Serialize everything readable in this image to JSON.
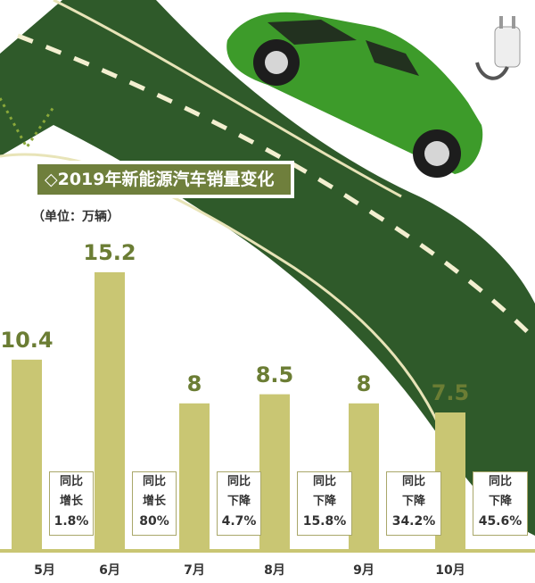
{
  "chart_data": {
    "type": "bar",
    "title": "◇2019年新能源汽车销量变化",
    "unit_label": "（单位：万辆）",
    "categories": [
      "5月",
      "6月",
      "7月",
      "8月",
      "9月",
      "10月"
    ],
    "values": [
      10.4,
      15.2,
      8,
      8.5,
      8,
      7.5
    ],
    "value_labels": [
      "10.4",
      "15.2",
      "8",
      "8.5",
      "8",
      "7.5"
    ],
    "yoy_notes": [
      {
        "line1": "同比",
        "line2": "增长",
        "value": "1.8%"
      },
      {
        "line1": "同比",
        "line2": "增长",
        "value": "80%"
      },
      {
        "line1": "同比",
        "line2": "下降",
        "value": "4.7%"
      },
      {
        "line1": "同比",
        "line2": "下降",
        "value": "15.8%"
      },
      {
        "line1": "同比",
        "line2": "下降",
        "value": "34.2%"
      },
      {
        "line1": "同比",
        "line2": "下降",
        "value": "45.6%"
      }
    ],
    "bar_color": "#c9c673",
    "label_color": "#6b7d34"
  },
  "illustration": {
    "description_icons": [
      "green-car-icon",
      "charging-plug-icon",
      "road-arrow-icon"
    ]
  }
}
